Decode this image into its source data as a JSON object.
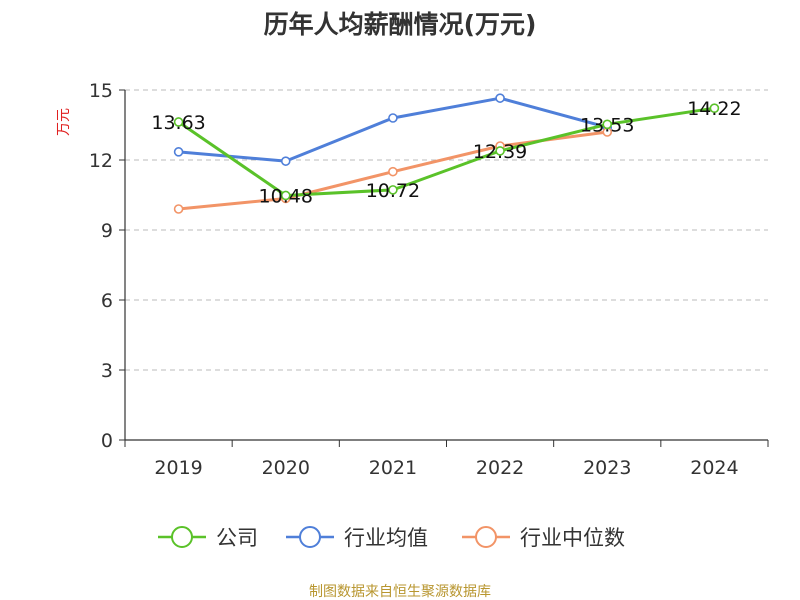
{
  "chart_data": {
    "type": "line",
    "title": "历年人均薪酬情况(万元)",
    "ylabel": "万元",
    "xlabel": "",
    "categories": [
      "2019",
      "2020",
      "2021",
      "2022",
      "2023",
      "2024"
    ],
    "ylim": [
      0,
      15
    ],
    "yticks": [
      0,
      3,
      6,
      9,
      12,
      15
    ],
    "grid": true,
    "legend_position": "bottom",
    "series": [
      {
        "name": "公司",
        "color": "#5ac229",
        "values": [
          13.63,
          10.48,
          10.72,
          12.39,
          13.53,
          14.22
        ],
        "labels": [
          "13.63",
          "10.48",
          "10.72",
          "12.39",
          "13.53",
          "14.22"
        ]
      },
      {
        "name": "行业均值",
        "color": "#4f7fd9",
        "values": [
          12.35,
          11.95,
          13.8,
          14.65,
          13.4,
          null
        ],
        "labels": []
      },
      {
        "name": "行业中位数",
        "color": "#f29467",
        "values": [
          9.9,
          10.35,
          11.5,
          12.6,
          13.2,
          null
        ],
        "labels": []
      }
    ]
  },
  "source": "制图数据来自恒生聚源数据库",
  "colors": {
    "ylabel": "#e02020",
    "source": "#b8962f",
    "grid": "#bbbbbb",
    "axis": "#333333"
  }
}
